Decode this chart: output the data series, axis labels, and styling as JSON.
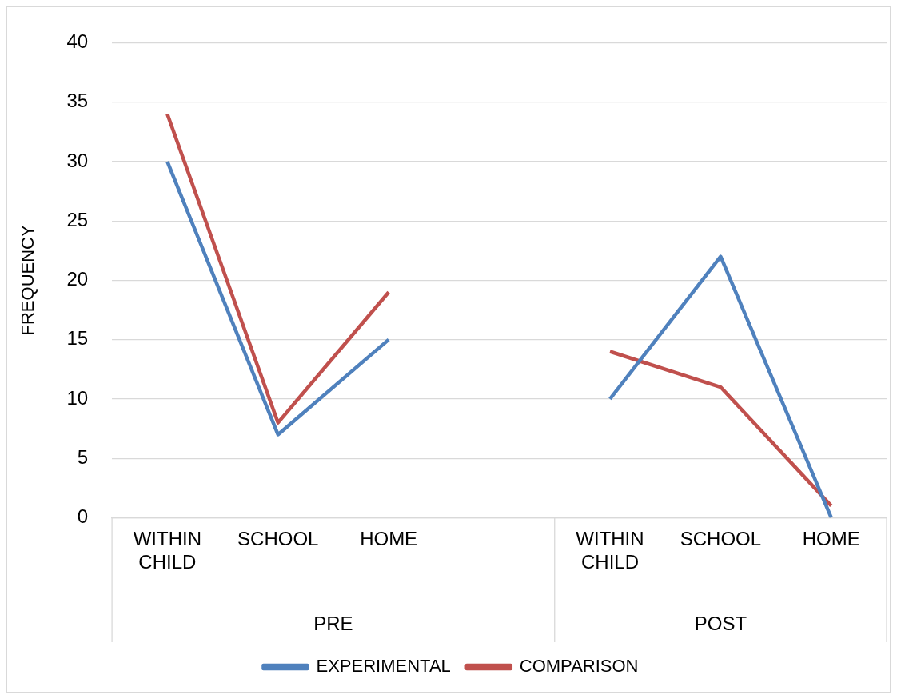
{
  "chart_data": {
    "type": "line",
    "ylabel": "FREQUENCY",
    "categories": [
      "WITHIN CHILD",
      "SCHOOL",
      "HOME",
      null,
      "WITHIN CHILD",
      "SCHOOL",
      "HOME"
    ],
    "series": [
      {
        "name": "EXPERIMENTAL",
        "color": "#4f81bd",
        "values": [
          30,
          7,
          15,
          null,
          10,
          22,
          0
        ]
      },
      {
        "name": "COMPARISON",
        "color": "#c0504d",
        "values": [
          34,
          8,
          19,
          null,
          14,
          11,
          1
        ]
      }
    ],
    "annotations": [
      "PRE",
      "POST"
    ],
    "ylim": [
      0,
      40
    ],
    "yticks": [
      0,
      5,
      10,
      15,
      20,
      25,
      30,
      35,
      40
    ],
    "grid": "y",
    "legend": "bottom",
    "marker": "none",
    "line_style": "solid"
  }
}
